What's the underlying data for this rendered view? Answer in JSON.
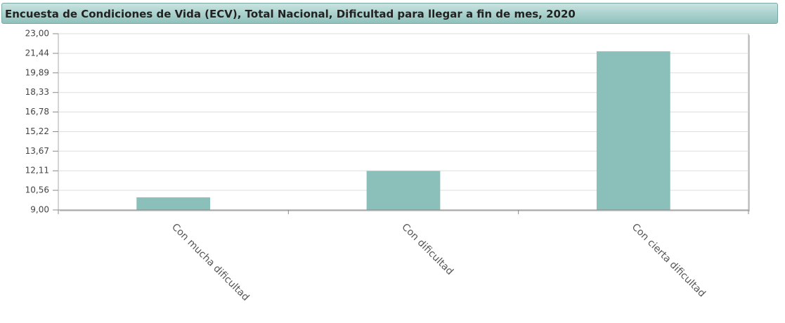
{
  "chart_data": {
    "type": "bar",
    "title": "Encuesta de Condiciones de Vida (ECV), Total Nacional, Dificultad para llegar a fin de mes, 2020",
    "categories": [
      "Con mucha dificultad",
      "Con dificultad",
      "Con cierta dificultad"
    ],
    "values": [
      10.0,
      12.1,
      21.6
    ],
    "color": "#8bbfba",
    "ylim": [
      9,
      23
    ],
    "yticks": [
      {
        "value": 9,
        "label": "9,00"
      },
      {
        "value": 10.56,
        "label": "10,56"
      },
      {
        "value": 12.11,
        "label": "12,11"
      },
      {
        "value": 13.67,
        "label": "13,67"
      },
      {
        "value": 15.22,
        "label": "15,22"
      },
      {
        "value": 16.78,
        "label": "16,78"
      },
      {
        "value": 18.33,
        "label": "18,33"
      },
      {
        "value": 19.89,
        "label": "19,89"
      },
      {
        "value": 21.44,
        "label": "21,44"
      },
      {
        "value": 23,
        "label": "23,00"
      }
    ],
    "grid": true
  }
}
